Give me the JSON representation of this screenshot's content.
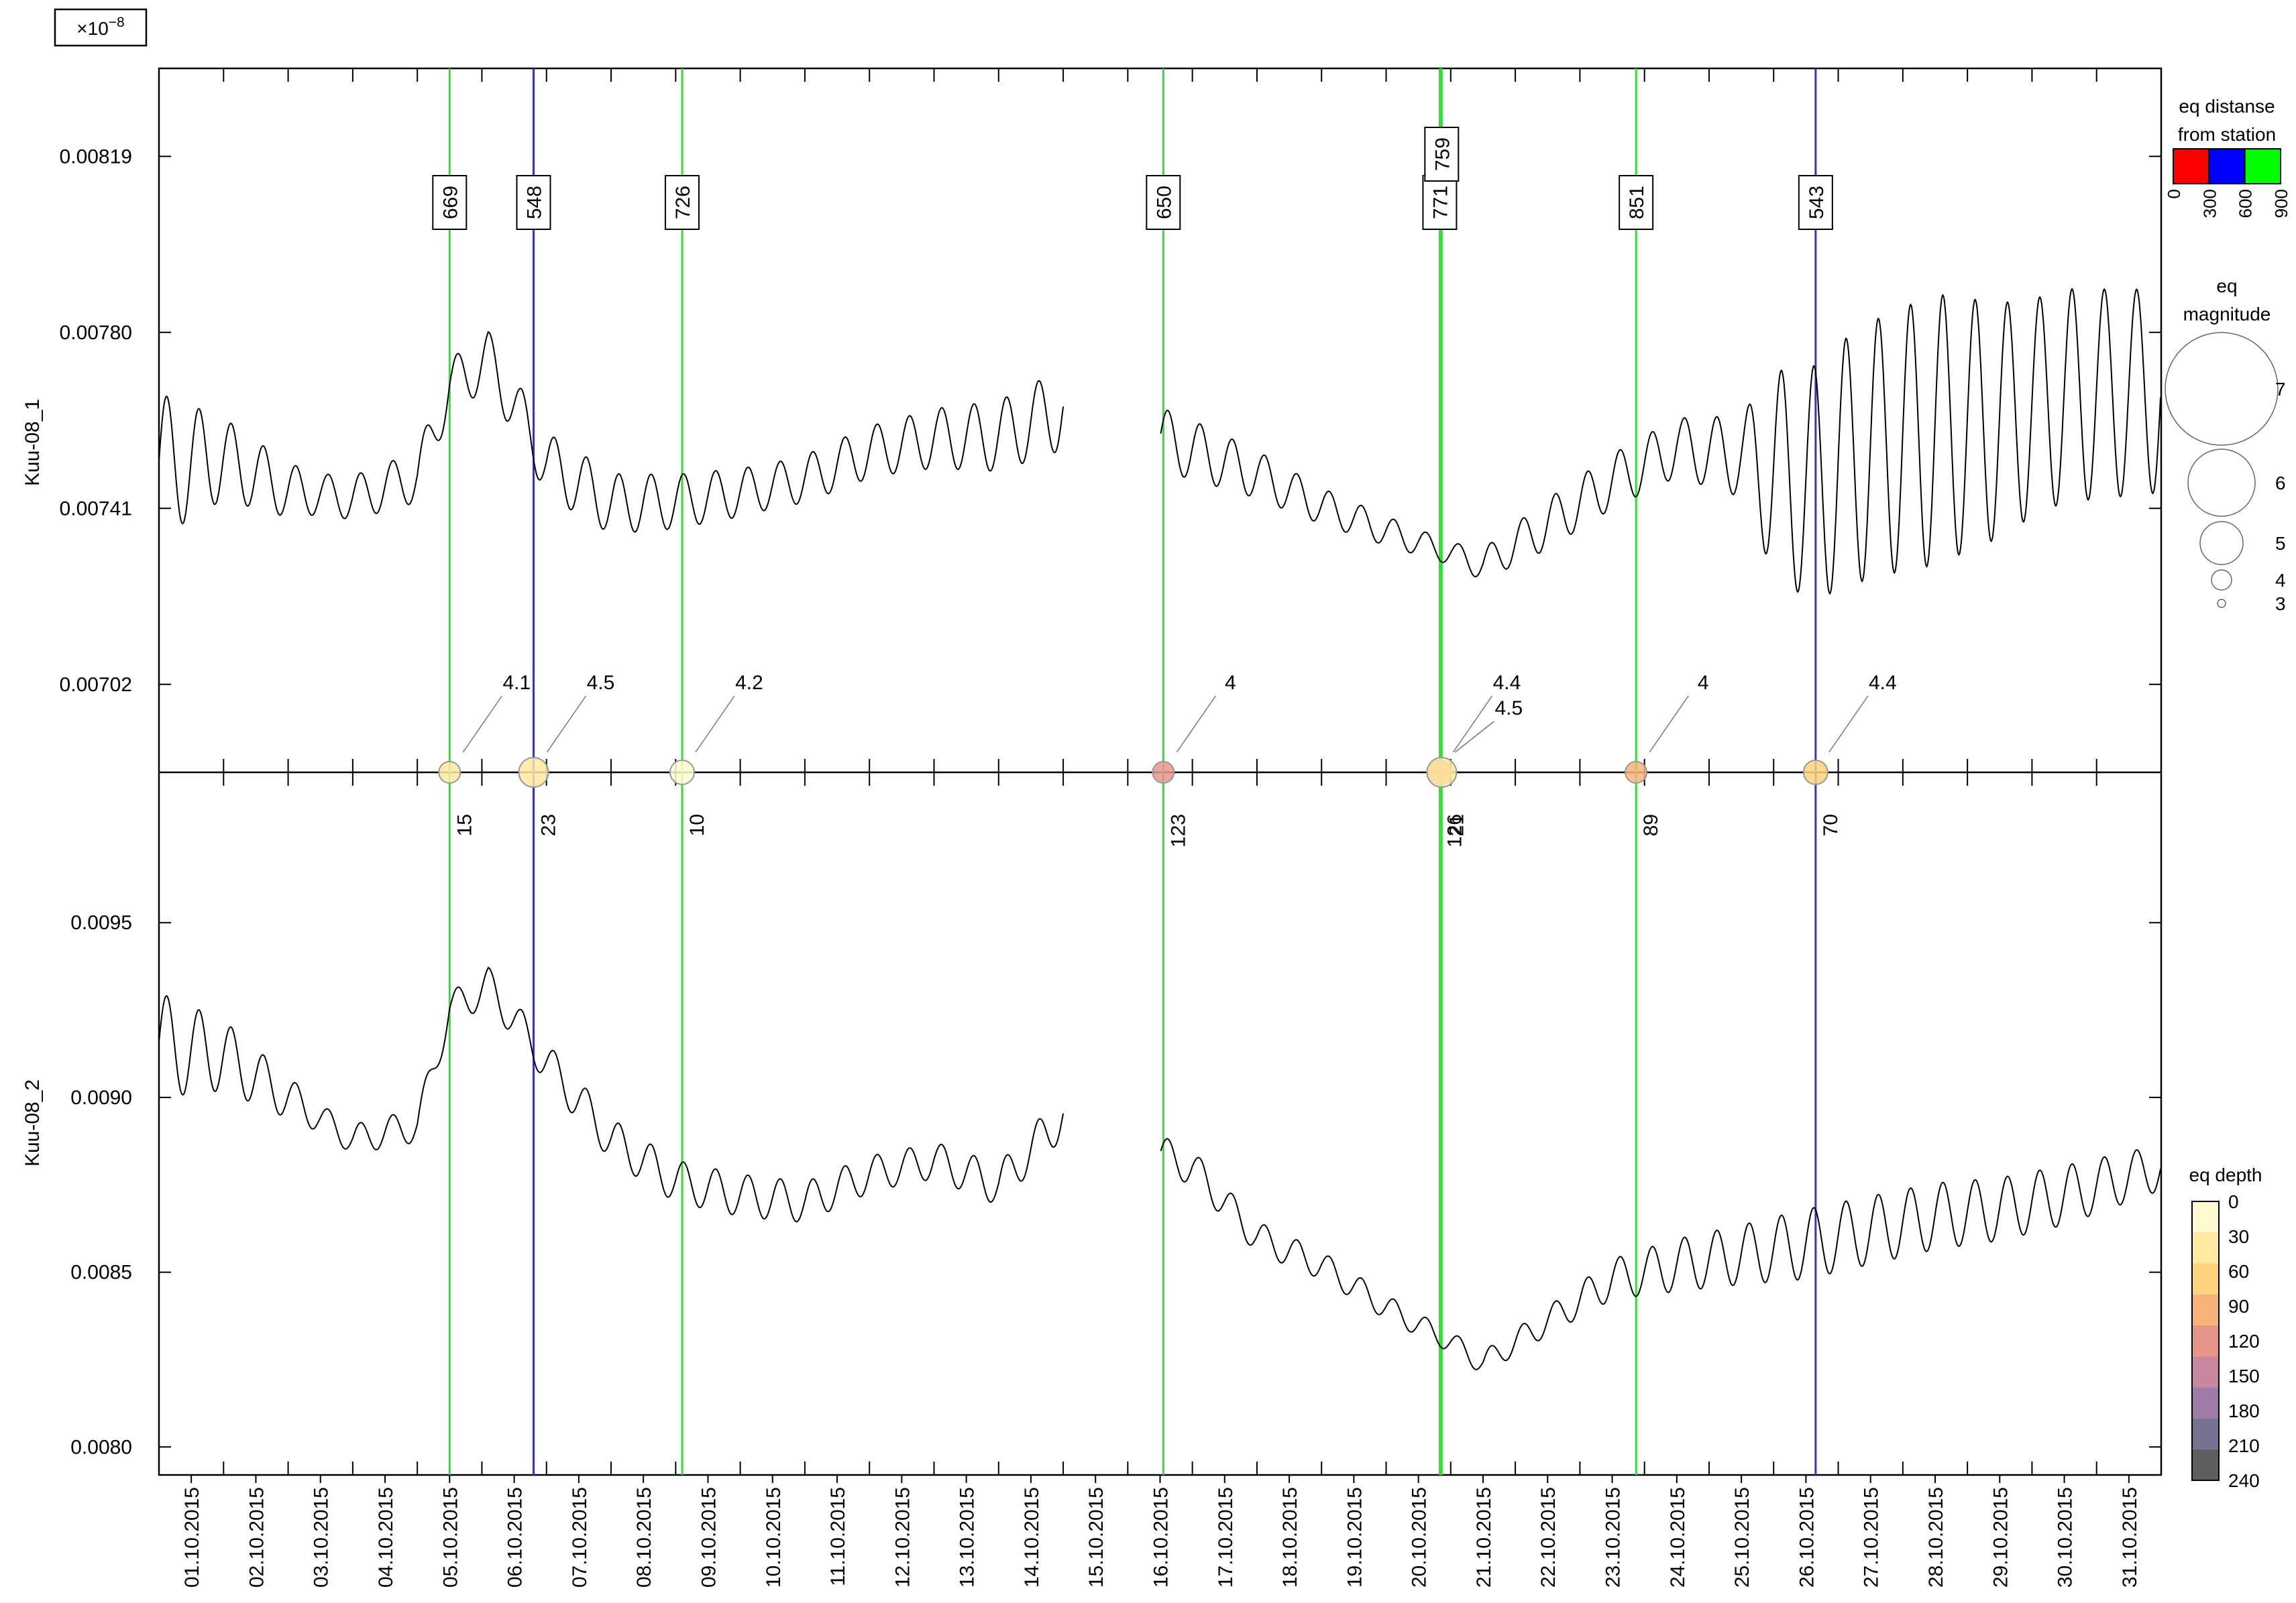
{
  "chart_data": {
    "type": "line",
    "multiplier_label": "×10",
    "multiplier_exp": "−8",
    "x": {
      "start": "01.10.2015",
      "end": "31.10.2015",
      "day_min": 0.5,
      "day_max": 31.5,
      "tick_labels": [
        "01.10.2015",
        "02.10.2015",
        "03.10.2015",
        "04.10.2015",
        "05.10.2015",
        "06.10.2015",
        "07.10.2015",
        "08.10.2015",
        "09.10.2015",
        "10.10.2015",
        "11.10.2015",
        "12.10.2015",
        "13.10.2015",
        "14.10.2015",
        "15.10.2015",
        "16.10.2015",
        "17.10.2015",
        "18.10.2015",
        "19.10.2015",
        "20.10.2015",
        "21.10.2015",
        "22.10.2015",
        "23.10.2015",
        "24.10.2015",
        "25.10.2015",
        "26.10.2015",
        "27.10.2015",
        "28.10.2015",
        "29.10.2015",
        "30.10.2015",
        "31.10.2015"
      ]
    },
    "panels": [
      {
        "ylabel": "Kuu-08_1",
        "ylim": [
          0.006825,
          0.008385
        ],
        "yticks": [
          0.00702,
          0.00741,
          0.0078,
          0.00819
        ],
        "ytick_labels": [
          "0.00702",
          "0.00741",
          "0.00780",
          "0.00819"
        ],
        "series": {
          "trend": [
            [
              0.5,
              0.007505
            ],
            [
              1.5,
              0.00752
            ],
            [
              2.5,
              0.00745
            ],
            [
              3.5,
              0.007433
            ],
            [
              4.5,
              0.00748
            ],
            [
              5.0,
              0.00768
            ],
            [
              5.6,
              0.00774
            ],
            [
              6.5,
              0.00751
            ],
            [
              7.5,
              0.00742
            ],
            [
              8.5,
              0.007425
            ],
            [
              9.5,
              0.007445
            ],
            [
              10.5,
              0.007475
            ],
            [
              11.5,
              0.007535
            ],
            [
              12.5,
              0.007565
            ],
            [
              13.5,
              0.00757
            ],
            [
              14.5,
              0.00763
            ],
            [
              15.5,
              null
            ],
            [
              16.5,
              0.00754
            ],
            [
              17.5,
              0.007485
            ],
            [
              18.5,
              0.007415
            ],
            [
              19.5,
              0.00736
            ],
            [
              20.5,
              0.00731
            ],
            [
              21.0,
              0.007285
            ],
            [
              22.0,
              0.007375
            ],
            [
              23.0,
              0.00747
            ],
            [
              24.0,
              0.007545
            ],
            [
              25.0,
              0.007525
            ],
            [
              26.0,
              0.00746
            ],
            [
              27.0,
              0.00754
            ],
            [
              28.0,
              0.007585
            ],
            [
              29.0,
              0.007605
            ],
            [
              30.0,
              0.00766
            ],
            [
              31.5,
              0.00767
            ]
          ],
          "amplitude": [
            [
              0.5,
              0.00032
            ],
            [
              1.5,
              0.00018
            ],
            [
              3.0,
              9e-05
            ],
            [
              5.0,
              0.00012
            ],
            [
              7.0,
              0.00014
            ],
            [
              10.0,
              0.0001
            ],
            [
              12.0,
              0.00012
            ],
            [
              14.5,
              0.00018
            ],
            [
              16.5,
              0.00013
            ],
            [
              18.5,
              8e-05
            ],
            [
              20.5,
              5e-05
            ],
            [
              22.0,
              0.00011
            ],
            [
              24.0,
              0.00013
            ],
            [
              25.0,
              0.00018
            ],
            [
              25.5,
              0.00045
            ],
            [
              26.5,
              0.00055
            ],
            [
              28.0,
              0.0006
            ],
            [
              29.5,
              0.00048
            ],
            [
              31.5,
              0.00045
            ]
          ],
          "gaps": [
            [
              14.5,
              16.0
            ]
          ]
        }
      },
      {
        "ylabel": "Kuu-08_2",
        "ylim": [
          0.00792,
          0.00993
        ],
        "yticks": [
          0.008,
          0.0085,
          0.009,
          0.0095
        ],
        "ytick_labels": [
          "0.0080",
          "0.0085",
          "0.0090",
          "0.0095"
        ],
        "series": {
          "trend": [
            [
              0.5,
              0.00915
            ],
            [
              1.5,
              0.00912
            ],
            [
              2.5,
              0.009
            ],
            [
              3.5,
              0.00888
            ],
            [
              4.5,
              0.00892
            ],
            [
              5.0,
              0.00925
            ],
            [
              5.6,
              0.00932
            ],
            [
              6.5,
              0.0091
            ],
            [
              7.5,
              0.00888
            ],
            [
              8.5,
              0.00876
            ],
            [
              9.5,
              0.00872
            ],
            [
              10.5,
              0.0087
            ],
            [
              11.5,
              0.00878
            ],
            [
              12.5,
              0.00882
            ],
            [
              13.5,
              0.00875
            ],
            [
              14.5,
              0.00895
            ],
            [
              15.5,
              null
            ],
            [
              16.5,
              0.0088
            ],
            [
              17.5,
              0.0086
            ],
            [
              18.5,
              0.00852
            ],
            [
              19.5,
              0.0084
            ],
            [
              20.5,
              0.0083
            ],
            [
              21.0,
              0.00824
            ],
            [
              22.0,
              0.00836
            ],
            [
              23.0,
              0.00848
            ],
            [
              24.0,
              0.00852
            ],
            [
              25.0,
              0.00855
            ],
            [
              26.0,
              0.00858
            ],
            [
              27.0,
              0.00862
            ],
            [
              28.0,
              0.00866
            ],
            [
              29.0,
              0.00868
            ],
            [
              30.0,
              0.00872
            ],
            [
              31.5,
              0.0088
            ]
          ],
          "amplitude": [
            [
              0.5,
              0.0003
            ],
            [
              1.5,
              0.0002
            ],
            [
              3.0,
              8e-05
            ],
            [
              5.0,
              0.0001
            ],
            [
              7.0,
              0.00012
            ],
            [
              10.0,
              0.00012
            ],
            [
              12.0,
              0.0001
            ],
            [
              14.5,
              0.00013
            ],
            [
              16.5,
              0.0001
            ],
            [
              18.5,
              8e-05
            ],
            [
              20.5,
              6e-05
            ],
            [
              22.0,
              8e-05
            ],
            [
              24.0,
              0.00015
            ],
            [
              25.0,
              0.00017
            ],
            [
              26.0,
              0.0002
            ],
            [
              28.0,
              0.00019
            ],
            [
              30.0,
              0.00017
            ],
            [
              31.5,
              0.00013
            ]
          ],
          "gaps": [
            [
              14.5,
              16.0
            ]
          ]
        }
      }
    ],
    "events": [
      {
        "day": 5.0,
        "distance": 669,
        "distance_label": "669",
        "magnitude": 4.1,
        "magnitude_label": "4.1",
        "depth": 15,
        "depth_label": "15",
        "color": "#33dd33"
      },
      {
        "day": 6.3,
        "distance": 548,
        "distance_label": "548",
        "magnitude": 4.5,
        "magnitude_label": "4.5",
        "depth": 23,
        "depth_label": "23",
        "color": "#3333cc"
      },
      {
        "day": 8.6,
        "distance": 726,
        "distance_label": "726",
        "magnitude": 4.2,
        "magnitude_label": "4.2",
        "depth": 10,
        "depth_label": "10",
        "color": "#33dd33"
      },
      {
        "day": 16.05,
        "distance": 650,
        "distance_label": "650",
        "magnitude": 4,
        "magnitude_label": "4",
        "depth": 123,
        "depth_label": "123",
        "color": "#33dd33"
      },
      {
        "day": 20.33,
        "distance": 771,
        "distance_label": "771",
        "magnitude": 4.4,
        "magnitude_label": "4.4",
        "depth": 126,
        "depth_label": "126",
        "color": "#33dd33"
      },
      {
        "day": 20.36,
        "distance": 759,
        "distance_label": "759",
        "magnitude": 4.5,
        "magnitude_label": "4.5",
        "depth": 21,
        "depth_label": "21",
        "color": "#33dd33"
      },
      {
        "day": 23.37,
        "distance": 851,
        "distance_label": "851",
        "magnitude": 4,
        "magnitude_label": "4",
        "depth": 89,
        "depth_label": "89",
        "color": "#33dd33"
      },
      {
        "day": 26.15,
        "distance": 543,
        "distance_label": "543",
        "magnitude": 4.4,
        "magnitude_label": "4.4",
        "depth": 70,
        "depth_label": "70",
        "color": "#3333cc"
      }
    ],
    "legend_distance": {
      "title_line1": "eq distanse",
      "title_line2": "from station",
      "colors": [
        "#ff0000",
        "#0000ff",
        "#00ff00"
      ],
      "tick_labels": [
        "0",
        "300",
        "600",
        "900"
      ]
    },
    "legend_magnitude": {
      "title_line1": "eq",
      "title_line2": "magnitude",
      "values": [
        7,
        6,
        5,
        4,
        3
      ],
      "labels": [
        "7",
        "6",
        "5",
        "4",
        "3"
      ]
    },
    "legend_depth": {
      "title": "eq depth",
      "colors": [
        "#fffbd0",
        "#ffe9a0",
        "#fdd27c",
        "#f7b37a",
        "#e89589",
        "#c8879f",
        "#9e7aa6",
        "#767291",
        "#5e5e5e"
      ],
      "tick_labels": [
        "0",
        "30",
        "60",
        "90",
        "120",
        "150",
        "180",
        "210",
        "240"
      ]
    }
  }
}
